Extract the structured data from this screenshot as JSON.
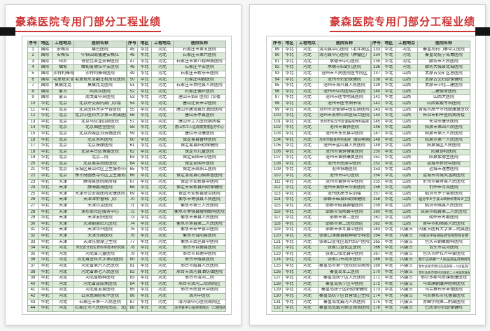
{
  "page_title": "豪森医院专用门部分工程业绩",
  "table_headers": [
    "序号",
    "地区",
    "工程地点",
    "医院名称"
  ],
  "accent_colors": {
    "title_red": "#cf3434",
    "stripe_green": "#dcebd8",
    "header_green": "#d2e1d2",
    "marker_black": "#141414"
  },
  "rows": [
    [
      "1",
      "国际",
      "安格拉",
      "桑巴医院"
    ],
    [
      "2",
      "国际",
      "安格拉",
      "中铁四局援建安格拉"
    ],
    [
      "3",
      "国际",
      "印尼",
      "哥伦比亚圣妥神医院"
    ],
    [
      "4",
      "国际",
      "缅甸",
      "缅甸曼德拉平安医院"
    ],
    [
      "5",
      "国际",
      "沙特利雅得",
      "沙特利雅得医院"
    ],
    [
      "6",
      "国际",
      "毛里塔尼亚",
      "毛里塔尼亚翻车机房及医院"
    ],
    [
      "7",
      "国际",
      "莫桑比克",
      "莫桑比克医院"
    ],
    [
      "8",
      "国际",
      "蒙古",
      "阿其拉医院"
    ],
    [
      "9",
      "国际",
      "蒙古",
      "南戈省中央医院"
    ],
    [
      "10",
      "华北",
      "北京",
      "北京外交部内部门诊楼"
    ],
    [
      "11",
      "华北",
      "北京",
      "北京医科大学平谷医院"
    ],
    [
      "12",
      "华北",
      "北京",
      "北京中医药大学第三附属医院"
    ],
    [
      "13",
      "华北",
      "北京",
      "北京马应龙肛肠医院"
    ],
    [
      "14",
      "华北",
      "北京",
      "北京国医堂医院"
    ],
    [
      "15",
      "华北",
      "北京",
      "北京西城区白云路医院"
    ],
    [
      "16",
      "华北",
      "北京",
      "北京水利医院"
    ],
    [
      "17",
      "华北",
      "北京",
      "北京按摩医院"
    ],
    [
      "18",
      "华北",
      "北京",
      "北京丰台区博爱医院"
    ],
    [
      "19",
      "华北",
      "北京",
      "北京二院"
    ],
    [
      "20",
      "华北",
      "北京",
      "北京美目尚医医院"
    ],
    [
      "21",
      "华北",
      "北京",
      "东城区景山社区卫生服务中心"
    ],
    [
      "22",
      "华北",
      "北京",
      "惇王府圆恩寺社区卫生服务站"
    ],
    [
      "23",
      "华北",
      "天津",
      "静海县医院病房楼"
    ],
    [
      "24",
      "华北",
      "天津",
      "静海鹏海医院"
    ],
    [
      "25",
      "华北",
      "天津",
      "天津市公安局医院安康医院"
    ],
    [
      "26",
      "华北",
      "天津",
      "天津津侨眷科门诊"
    ],
    [
      "27",
      "华北",
      "天津",
      "天津小淀医院"
    ],
    [
      "28",
      "华北",
      "天津",
      "浦东街社区服务中心"
    ],
    [
      "29",
      "华北",
      "天津",
      "天津友好医院"
    ],
    [
      "30",
      "华北",
      "天津",
      "天津蓟县妇儿医院"
    ],
    [
      "31",
      "华北",
      "天津",
      "天津华兴医院"
    ],
    [
      "32",
      "华北",
      "天津",
      "天津东丽医院"
    ],
    [
      "33",
      "华北",
      "天津",
      "天津东丽湖卫生院"
    ],
    [
      "34",
      "华北",
      "河北",
      "河北省计划生育科学技术研究院"
    ],
    [
      "35",
      "华北",
      "河北",
      "河北省儿童医院"
    ],
    [
      "36",
      "华北",
      "河北",
      "河北省医科大学第四医院"
    ],
    [
      "37",
      "华北",
      "河北",
      "河北省第六人民医院"
    ],
    [
      "38",
      "华北",
      "河北",
      "河北省第七人民医院"
    ],
    [
      "39",
      "华北",
      "河北",
      "河北省眼科医院"
    ],
    [
      "40",
      "华北",
      "河北",
      "河北省皮肤病医院"
    ],
    [
      "41",
      "华北",
      "河北",
      "河北省友爱医院"
    ],
    [
      "42",
      "华北",
      "河北",
      "白求恩国际和平医院"
    ],
    [
      "43",
      "华北",
      "河北",
      "石家庄市第一人民医院"
    ],
    [
      "44",
      "华北",
      "河北",
      "石家庄市人民医院南区、北区"
    ],
    [
      "45",
      "华北",
      "河北",
      "石家庄市第五医院"
    ],
    [
      "46",
      "华北",
      "河北",
      "石家庄市第六医院"
    ],
    [
      "47",
      "华北",
      "河北",
      "石家庄市第八精神病医院"
    ],
    [
      "48",
      "华北",
      "河北",
      "石家庄平安医院"
    ],
    [
      "49",
      "华北",
      "河北",
      "石家庄市新乐市医院"
    ],
    [
      "50",
      "华北",
      "河北",
      "石家庄明翰医院"
    ],
    [
      "51",
      "华北",
      "河北",
      "石家庄市井陉县人民医院"
    ],
    [
      "52",
      "华北",
      "河北",
      "石家庄循环医院"
    ],
    [
      "53",
      "华北",
      "河北",
      "唐山市招矿医院门诊楼"
    ],
    [
      "54",
      "华北",
      "河北",
      "唐山迁安市中医院"
    ],
    [
      "55",
      "华北",
      "河北",
      "唐山市唐海冀东油田医院"
    ],
    [
      "56",
      "华北",
      "河北",
      "唐山乐亭县医院"
    ],
    [
      "57",
      "华北",
      "河北",
      "唐山市工人医院病房楼"
    ],
    [
      "58",
      "华北",
      "河北",
      "唐山市工人医院康复楼医疗中心"
    ],
    [
      "59",
      "华北",
      "河北",
      "唐山市汉康医院"
    ],
    [
      "60",
      "华北",
      "河北",
      "保定易县香林医院"
    ],
    [
      "61",
      "华北",
      "河北",
      "保定易县妇幼保健院"
    ],
    [
      "62",
      "华北",
      "河北",
      "保定市儿童医院"
    ],
    [
      "63",
      "华北",
      "河北",
      "保定安国市中医院"
    ],
    [
      "64",
      "华北",
      "河北",
      "保定安国市医院"
    ],
    [
      "65",
      "华北",
      "河北",
      "保定乐凯职工医院"
    ],
    [
      "66",
      "华北",
      "河北",
      "保定清苑县心脑血管医院"
    ],
    [
      "67",
      "华北",
      "河北",
      "保定市安新县中医院"
    ],
    [
      "68",
      "华北",
      "河北",
      "保定市安新县妇幼保健院"
    ],
    [
      "69",
      "华北",
      "河北",
      "保定市安新县联合医院"
    ],
    [
      "70",
      "华北",
      "河北",
      "衡水市枣强县人民医院"
    ],
    [
      "71",
      "华北",
      "河北",
      "衡水市第三人民医院"
    ],
    [
      "72",
      "华北",
      "河北",
      "衡水市枣强县瞳明眼科医院"
    ],
    [
      "73",
      "华北",
      "河北",
      "衡水市景县人民医院"
    ],
    [
      "74",
      "华北",
      "河北",
      "衡水市景县第二人民医院"
    ],
    [
      "75",
      "华北",
      "河北",
      "衡水市安平县中医院"
    ],
    [
      "76",
      "华北",
      "河北",
      "衡水市饶阳县医院"
    ],
    [
      "77",
      "华北",
      "河北",
      "衡水市武邑县中医院"
    ],
    [
      "78",
      "华北",
      "河北",
      "邢台市巨鹿县医院"
    ],
    [
      "79",
      "华北",
      "河北",
      "邢台市巨鹿中医院"
    ],
    [
      "80",
      "华北",
      "河北",
      "邢台市威县医院"
    ],
    [
      "81",
      "华北",
      "河北",
      "邢台市威县人民医院"
    ],
    [
      "82",
      "华北",
      "河北",
      "邢台市清河县油坊镇医院"
    ],
    [
      "83",
      "华北",
      "河北",
      "邢台市清河二院"
    ],
    [
      "84",
      "华北",
      "河北",
      "邢台市清河二院西院区"
    ],
    [
      "85",
      "华北",
      "河北",
      "邢台市南宫市中医院"
    ],
    [
      "86",
      "华北",
      "河北",
      "清河中医院"
    ],
    [
      "87",
      "华北",
      "河北",
      "清河县中心医院南院区"
    ],
    [
      "88",
      "华北",
      "河北",
      "清河县中心医院南院区（口腔医院）"
    ],
    [
      "89",
      "华北",
      "河北",
      "清河县中心医院（老年病区）"
    ],
    [
      "90",
      "华北",
      "河北",
      "清河县中心医院（肿瘤区）"
    ],
    [
      "91",
      "华北",
      "河北",
      "承德市中心医院"
    ],
    [
      "92",
      "华北",
      "河北",
      "承德市妇幼儿医院"
    ],
    [
      "93",
      "华北",
      "河北",
      "沧州市人民医院医专院区"
    ],
    [
      "94",
      "华北",
      "河北",
      "沧州市妇幼保健院"
    ],
    [
      "95",
      "华北",
      "河北",
      "沧州市海兴县人民医院"
    ],
    [
      "96",
      "华北",
      "河北",
      "沧州市中西医结合医院"
    ],
    [
      "97",
      "华北",
      "河北",
      "沧州市医专附属医院"
    ],
    [
      "98",
      "华北",
      "河北",
      "沧州市医专图书馆"
    ],
    [
      "99",
      "华北",
      "河北",
      "沧州市达彼顿中医肛肠医院"
    ],
    [
      "100",
      "华北",
      "河北",
      "沧州市吴桥中西医结合医院"
    ],
    [
      "101",
      "华北",
      "河北",
      "沧州市任丘市友谊医院骨科医院"
    ],
    [
      "102",
      "华北",
      "河北",
      "沧州市黄骅医院"
    ],
    [
      "103",
      "华北",
      "河北",
      "沧州市东光县中医院"
    ],
    [
      "104",
      "华北",
      "河北",
      "沧州市献县骨科医院（献县神通医院）"
    ],
    [
      "105",
      "华北",
      "河北",
      "沧州市盐山县人民医院"
    ],
    [
      "106",
      "华北",
      "河北",
      "沧州市黄骅博爱医院"
    ],
    [
      "107",
      "华北",
      "河北",
      "沧州市黄骅康复医院"
    ],
    [
      "108",
      "华北",
      "河北",
      "沧州市南皮中医院"
    ],
    [
      "109",
      "华北",
      "河北",
      "沧州铁路医院"
    ],
    [
      "110",
      "华北",
      "河北",
      "沧州市中心医院"
    ],
    [
      "111",
      "华北",
      "河北",
      "沧州市黄骅市中医院"
    ],
    [
      "112",
      "华北",
      "河北",
      "沧州市黄骅市华美医院"
    ],
    [
      "113",
      "华北",
      "河北",
      "沧州医高专实训楼"
    ],
    [
      "114",
      "华北",
      "河北",
      "邯郸市磁县妇幼保健院"
    ],
    [
      "115",
      "华北",
      "河北",
      "邯郸市磁县肿瘤医院"
    ],
    [
      "116",
      "华北",
      "河北",
      "邯郸市馆陶县中医院"
    ],
    [
      "117",
      "华北",
      "河北",
      "邯郸市第二医院"
    ],
    [
      "118",
      "华北",
      "河北",
      "邯郸市第二医院西区"
    ],
    [
      "119",
      "华北",
      "河北",
      "邯郸市永年县中医院"
    ],
    [
      "120",
      "华北",
      "河北",
      "张家口涿鹿县精神病专科医院"
    ],
    [
      "121",
      "华北",
      "河北",
      "张家口宣化区现代妇产医院"
    ],
    [
      "122",
      "华北",
      "河北",
      "张家口宣化区医院"
    ],
    [
      "123",
      "华北",
      "河北",
      "张家口张北县中医院"
    ],
    [
      "124",
      "华北",
      "河北",
      "张家口市商业医院"
    ],
    [
      "125",
      "华北",
      "河北",
      "秦皇岛市第一医院综合病房楼"
    ],
    [
      "126",
      "华北",
      "河北",
      "秦皇岛军工医院"
    ],
    [
      "127",
      "华北",
      "河北",
      "秦皇岛抚宁区人民医院"
    ],
    [
      "128",
      "华北",
      "河北",
      "秦皇岛抚宁区中医院"
    ],
    [
      "129",
      "华北",
      "河北",
      "秦皇岛抚宁区妇幼保健院"
    ],
    [
      "130",
      "华北",
      "河北",
      "秦皇岛抚宁区台营镇卫生院"
    ],
    [
      "131",
      "华北",
      "河北",
      "秦皇岛北戴河人民医院"
    ],
    [
      "132",
      "华北",
      "河北",
      "秦皇岛北戴河新区顺清医院"
    ],
    [
      "133",
      "华北",
      "河北",
      "秦皇岛石门寨带江医院"
    ],
    [
      "134",
      "华北",
      "河北",
      "秦皇岛抚宁戒毒医院"
    ],
    [
      "135",
      "华北",
      "河北",
      "廊坊市人民医院"
    ],
    [
      "136",
      "华北",
      "河北",
      "廊坊大城县北城医院"
    ],
    [
      "137",
      "华北",
      "山西",
      "太原古交矿区总医院"
    ],
    [
      "138",
      "华北",
      "山西",
      "太原古交妇幼保健院"
    ],
    [
      "139",
      "华北",
      "山西",
      "太原市中化二建医院"
    ],
    [
      "140",
      "华北",
      "山西",
      "二建宿舍医院"
    ],
    [
      "141",
      "华北",
      "山西",
      "山西大医院"
    ],
    [
      "142",
      "华北",
      "山西",
      "山西紫癜专科医院"
    ],
    [
      "143",
      "华北",
      "山西",
      "晋城市高平市残联康复医院"
    ],
    [
      "144",
      "华北",
      "山西",
      "长治市和平医院病房楼"
    ],
    [
      "145",
      "华北",
      "山西",
      "长治市康乐医院"
    ],
    [
      "146",
      "华北",
      "山西",
      "阳泉市第四人民医院"
    ],
    [
      "147",
      "华北",
      "山西",
      "阳泉市第三人民医院"
    ],
    [
      "148",
      "华北",
      "山西",
      "阳泉市第一人民医院"
    ],
    [
      "149",
      "华北",
      "山西",
      "阳泉城区人民医院"
    ],
    [
      "150",
      "华北",
      "山西",
      "阳泉协和医院"
    ],
    [
      "151",
      "华北",
      "山西",
      "阳泉紫德生医院"
    ],
    [
      "152",
      "华北",
      "山西",
      "运城市新绛中医院"
    ],
    [
      "153",
      "华北",
      "山西",
      "运城市逸春医院"
    ],
    [
      "154",
      "华北",
      "山西",
      "运城市芮城风湿病医院"
    ],
    [
      "155",
      "华北",
      "山西",
      "忻州市繁峙县人民医院"
    ],
    [
      "156",
      "华北",
      "山西",
      "忻州市岢岚医院"
    ],
    [
      "157",
      "华北",
      "山西",
      "临汾市乡宁县新医院"
    ],
    [
      "158",
      "华北",
      "山西",
      "临汾市乡宁县山峡骨科枣岭乡卫生院"
    ],
    [
      "159",
      "华北",
      "山西",
      "临汾市隰县人民医院"
    ],
    [
      "160",
      "华北",
      "山西",
      "吕梁市临县第二人民医院"
    ],
    [
      "161",
      "华北",
      "山西",
      "朔州市名都医院"
    ],
    [
      "162",
      "华北",
      "山西",
      "晋中市和顺县人民医院"
    ],
    [
      "163",
      "华北",
      "内蒙古",
      "内蒙古医科大学第二附属医院"
    ],
    [
      "164",
      "华北",
      "内蒙古",
      "内蒙古中医院医技住院部综合楼"
    ],
    [
      "165",
      "华北",
      "内蒙古",
      "包头市朝聚眼科医院"
    ],
    [
      "166",
      "华北",
      "内蒙古",
      "包头市昆河医院"
    ],
    [
      "167",
      "华北",
      "内蒙古",
      "包头市萨拉齐中蒙医院"
    ],
    [
      "168",
      "华北",
      "内蒙古",
      "额尔古纳第一人民医院医技病房楼"
    ],
    [
      "169",
      "华北",
      "内蒙古",
      "鄂尔多斯市鄂托克前旗第一人民医院门诊病房楼"
    ],
    [
      "170",
      "华北",
      "内蒙古",
      "鄂尔多斯市鄂托克旗第二人民医院医技病房楼"
    ],
    [
      "171",
      "华北",
      "内蒙古",
      "鄂尔多斯乌审旗新康医院"
    ],
    [
      "172",
      "华北",
      "内蒙古",
      "乌审旗朝康神经病医院"
    ],
    [
      "173",
      "华北",
      "内蒙古",
      "乌兰察布市丰镇医院"
    ],
    [
      "174",
      "华北",
      "内蒙古",
      "乌兰察布市化德县医院"
    ],
    [
      "175",
      "华北",
      "内蒙古",
      "赤峰学院第二附属医院"
    ],
    [
      "176",
      "华北",
      "内蒙古",
      "巴彦淖尔妇幼保健院"
    ]
  ],
  "layout": {
    "left_page_slices": [
      "0:44",
      "44:88"
    ],
    "right_page_slices": [
      "88:132",
      "132:176"
    ]
  }
}
